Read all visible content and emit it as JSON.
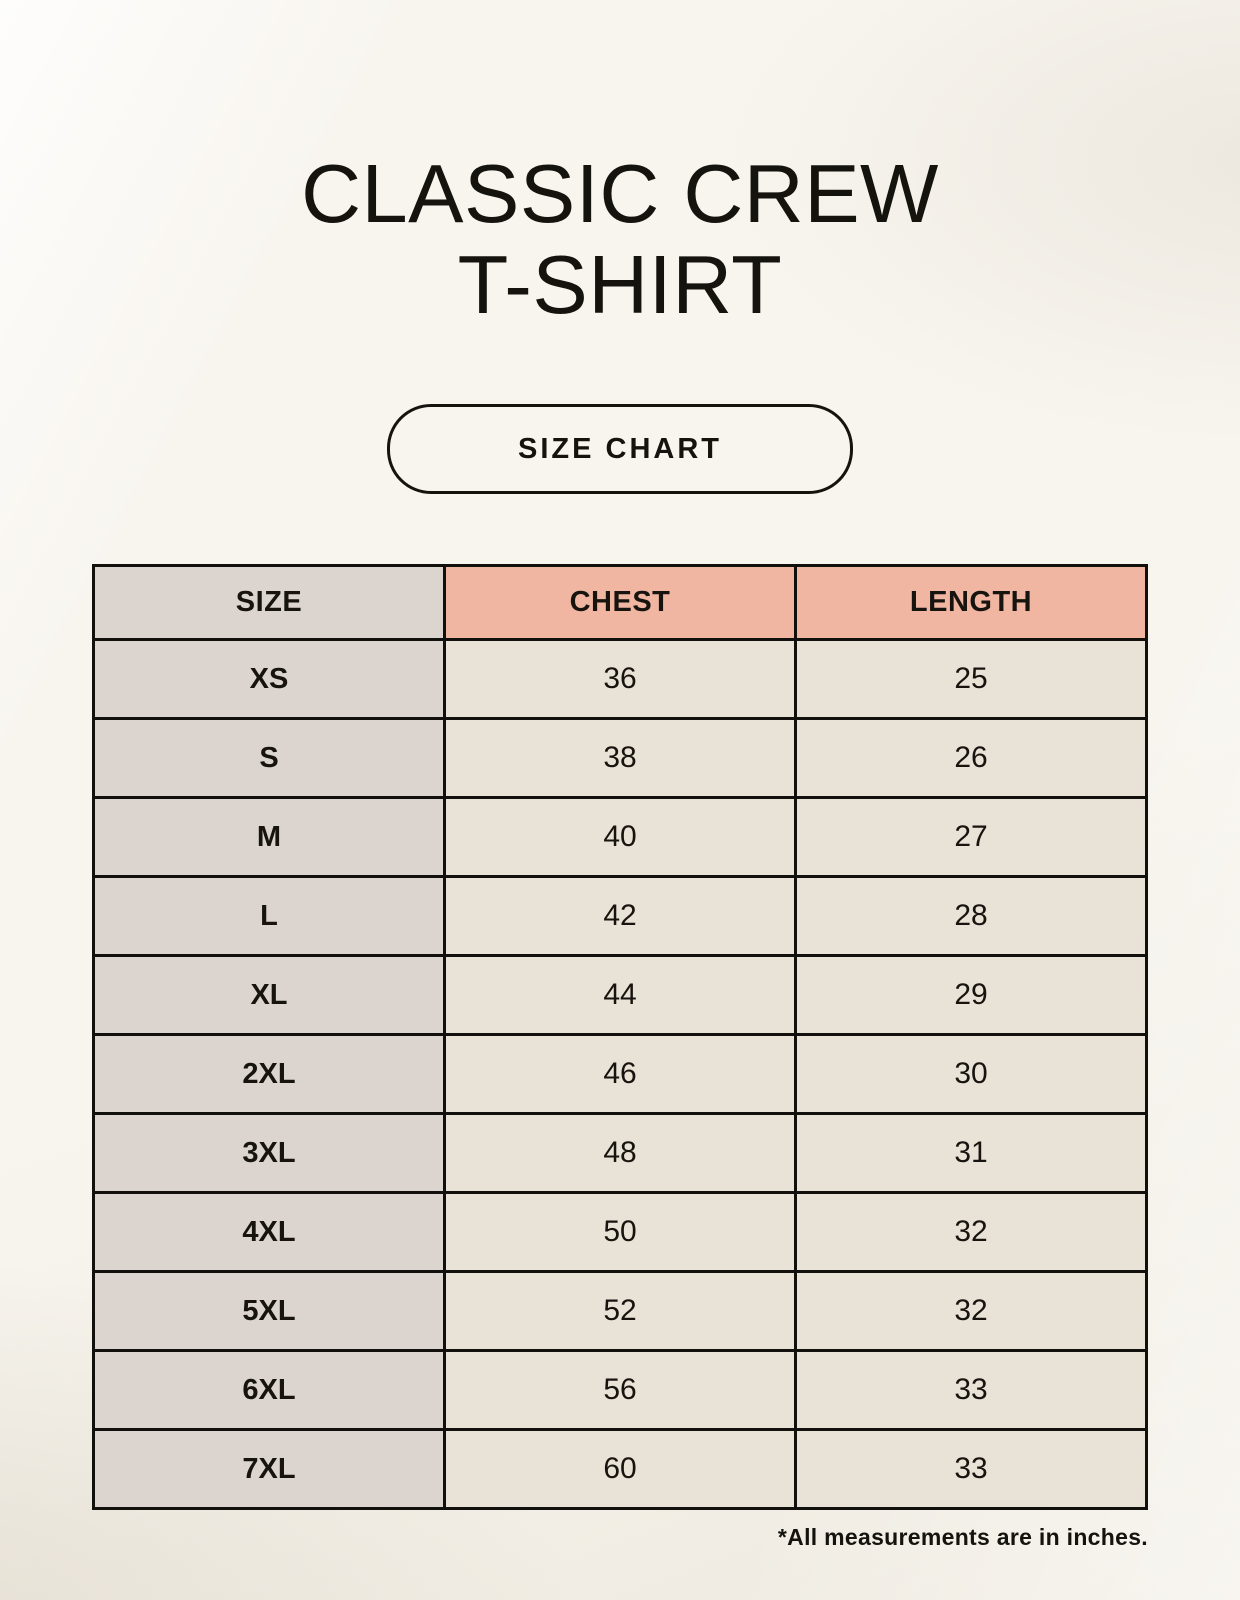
{
  "page": {
    "title_line1": "CLASSIC CREW",
    "title_line2": "T-SHIRT",
    "button_label": "SIZE CHART",
    "footnote": "*All measurements are in inches."
  },
  "table": {
    "headers": {
      "size": "SIZE",
      "chest": "CHEST",
      "length": "LENGTH"
    },
    "rows": [
      {
        "size": "XS",
        "chest": "36",
        "length": "25"
      },
      {
        "size": "S",
        "chest": "38",
        "length": "26"
      },
      {
        "size": "M",
        "chest": "40",
        "length": "27"
      },
      {
        "size": "L",
        "chest": "42",
        "length": "28"
      },
      {
        "size": "XL",
        "chest": "44",
        "length": "29"
      },
      {
        "size": "2XL",
        "chest": "46",
        "length": "30"
      },
      {
        "size": "3XL",
        "chest": "48",
        "length": "31"
      },
      {
        "size": "4XL",
        "chest": "50",
        "length": "32"
      },
      {
        "size": "5XL",
        "chest": "52",
        "length": "32"
      },
      {
        "size": "6XL",
        "chest": "56",
        "length": "33"
      },
      {
        "size": "7XL",
        "chest": "60",
        "length": "33"
      }
    ]
  },
  "colors": {
    "background": "#f4f0e7",
    "header_accent": "#f0b6a2",
    "size_column": "#dcd5cf",
    "data_cell": "#e9e2d6",
    "border": "#12100c",
    "text": "#15130e"
  },
  "chart_data": {
    "type": "table",
    "title": "CLASSIC CREW T-SHIRT",
    "subtitle": "SIZE CHART",
    "columns": [
      "SIZE",
      "CHEST",
      "LENGTH"
    ],
    "rows": [
      [
        "XS",
        36,
        25
      ],
      [
        "S",
        38,
        26
      ],
      [
        "M",
        40,
        27
      ],
      [
        "L",
        42,
        28
      ],
      [
        "XL",
        44,
        29
      ],
      [
        "2XL",
        46,
        30
      ],
      [
        "3XL",
        48,
        31
      ],
      [
        "4XL",
        50,
        32
      ],
      [
        "5XL",
        52,
        32
      ],
      [
        "6XL",
        56,
        33
      ],
      [
        "7XL",
        60,
        33
      ]
    ],
    "units": "inches",
    "note": "*All measurements are in inches."
  }
}
